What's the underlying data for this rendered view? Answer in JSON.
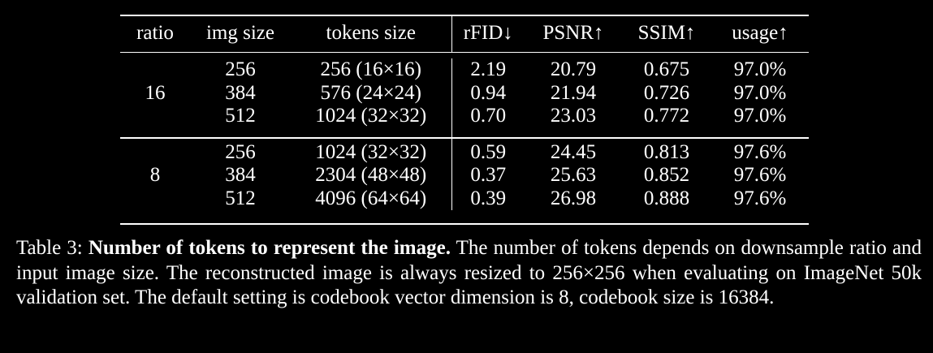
{
  "table": {
    "headers": [
      "ratio",
      "img size",
      "tokens size",
      "rFID↓",
      "PSNR↑",
      "SSIM↑",
      "usage↑"
    ],
    "groups": [
      {
        "ratio": "16",
        "rows": [
          {
            "img_size": "256",
            "tokens_size": "256 (16×16)",
            "rfid": "2.19",
            "psnr": "20.79",
            "ssim": "0.675",
            "usage": "97.0%"
          },
          {
            "img_size": "384",
            "tokens_size": "576 (24×24)",
            "rfid": "0.94",
            "psnr": "21.94",
            "ssim": "0.726",
            "usage": "97.0%"
          },
          {
            "img_size": "512",
            "tokens_size": "1024 (32×32)",
            "rfid": "0.70",
            "psnr": "23.03",
            "ssim": "0.772",
            "usage": "97.0%"
          }
        ]
      },
      {
        "ratio": "8",
        "rows": [
          {
            "img_size": "256",
            "tokens_size": "1024 (32×32)",
            "rfid": "0.59",
            "psnr": "24.45",
            "ssim": "0.813",
            "usage": "97.6%"
          },
          {
            "img_size": "384",
            "tokens_size": "2304 (48×48)",
            "rfid": "0.37",
            "psnr": "25.63",
            "ssim": "0.852",
            "usage": "97.6%"
          },
          {
            "img_size": "512",
            "tokens_size": "4096 (64×64)",
            "rfid": "0.39",
            "psnr": "26.98",
            "ssim": "0.888",
            "usage": "97.6%"
          }
        ]
      }
    ]
  },
  "caption": {
    "label": "Table 3:",
    "title": "Number of tokens to represent the image.",
    "text": "The number of tokens depends on downsample ratio and input image size. The reconstructed image is always resized to 256×256 when evaluating on ImageNet 50k validation set. The default setting is codebook vector dimension is 8, codebook size is 16384."
  }
}
